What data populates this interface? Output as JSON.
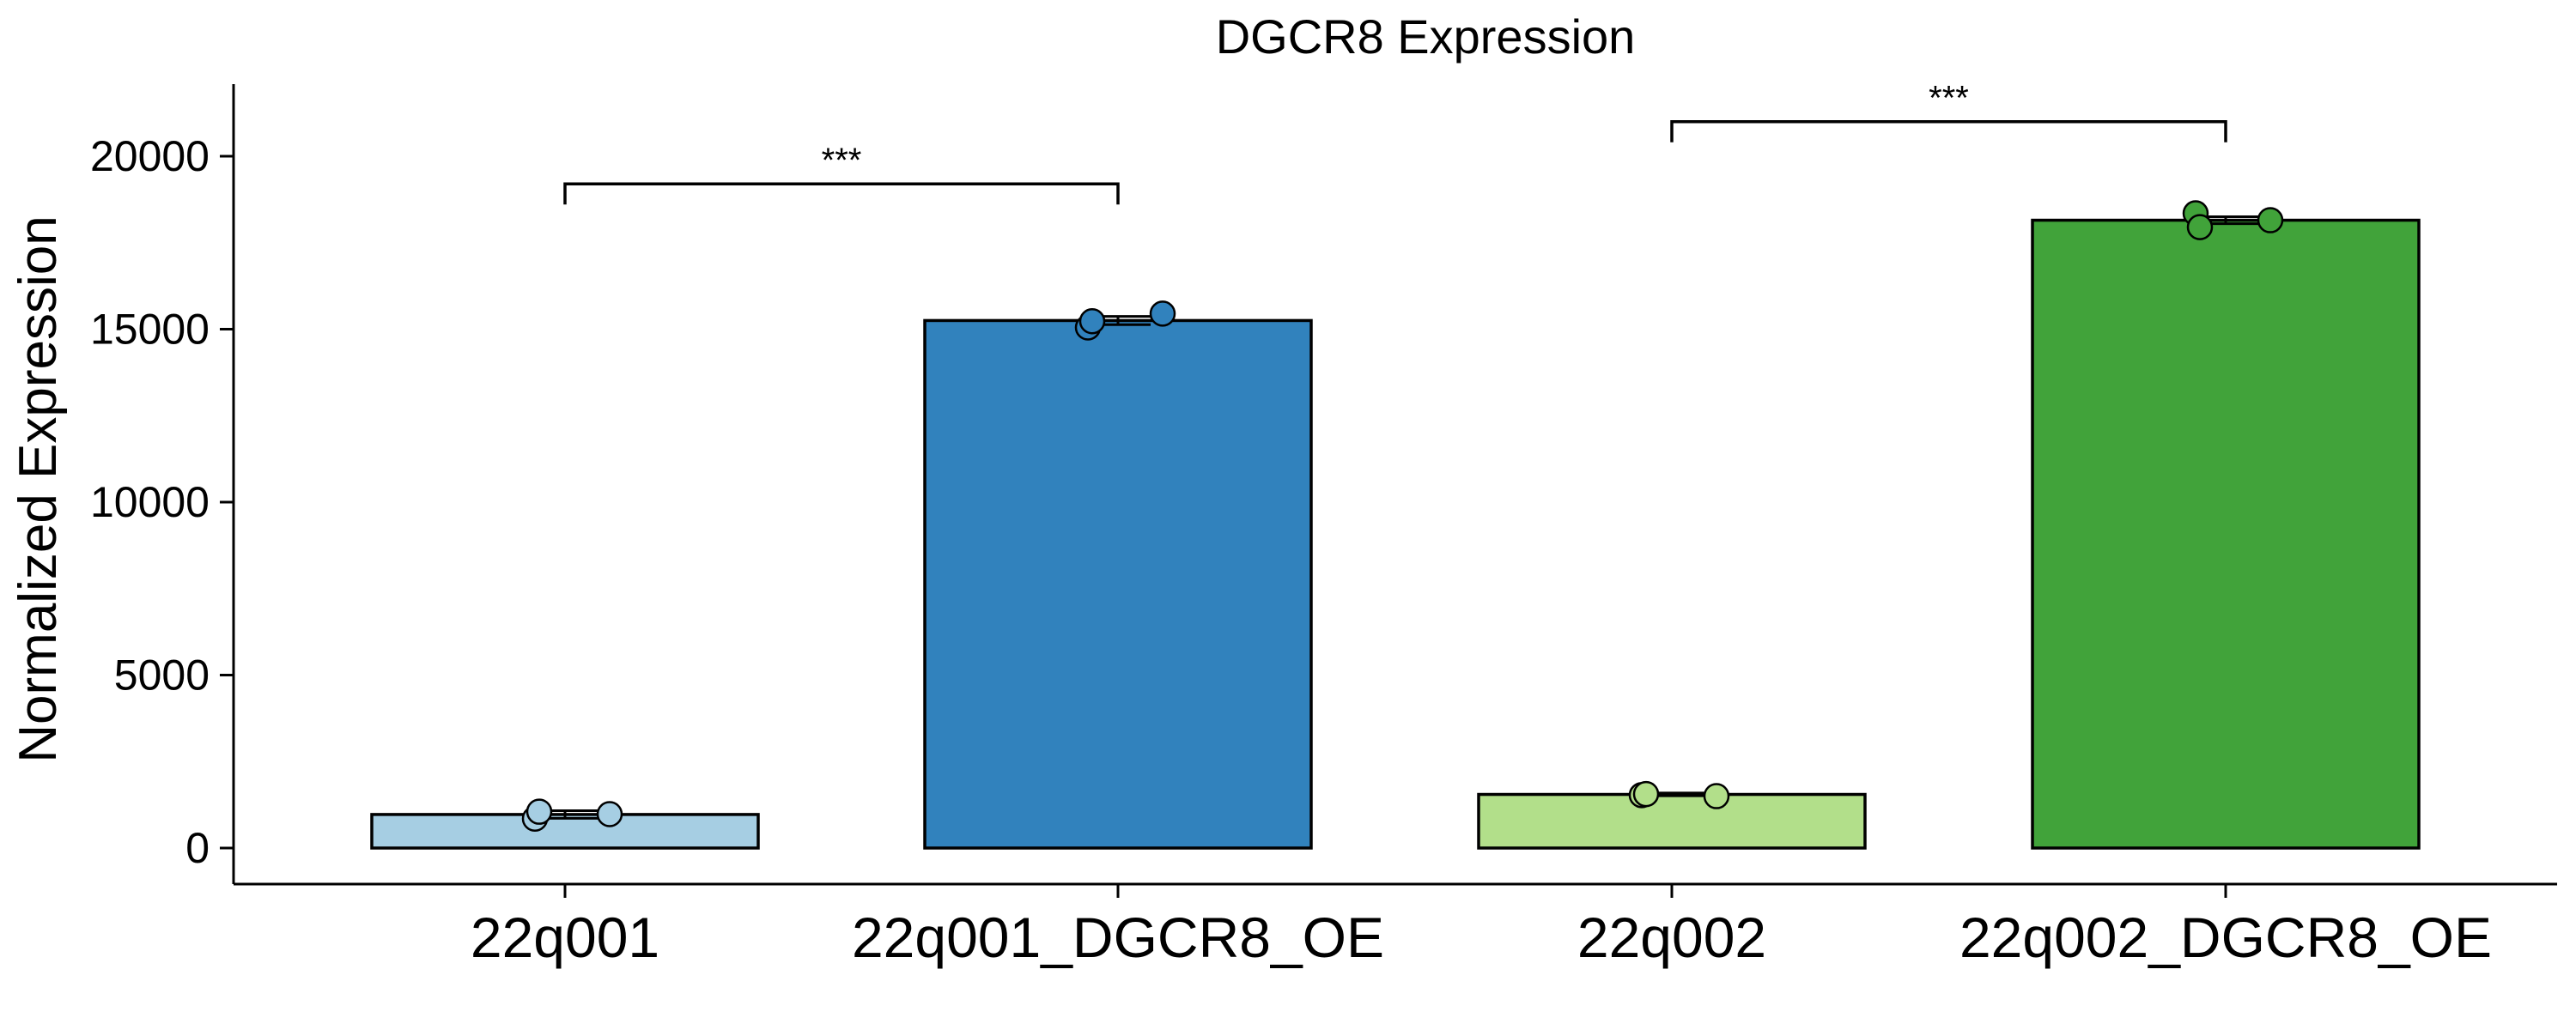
{
  "chart_data": {
    "type": "bar",
    "title": "DGCR8 Expression",
    "xlabel": "",
    "ylabel": "Normalized Expression",
    "categories": [
      "22q001",
      "22q001_DGCR8_OE",
      "22q002",
      "22q002_DGCR8_OE"
    ],
    "values": [
      970,
      15250,
      1550,
      18150
    ],
    "errors": [
      110,
      120,
      40,
      100
    ],
    "colors": [
      "#A6CEE3",
      "#3182BD",
      "#B2DF8A",
      "#41A33A"
    ],
    "points": [
      [
        850,
        1050,
        980
      ],
      [
        15050,
        15230,
        15450
      ],
      [
        1530,
        1560,
        1500
      ],
      [
        18350,
        17950,
        18150
      ]
    ],
    "ylim": [
      -1000,
      22000
    ],
    "yticks": [
      0,
      5000,
      10000,
      15000,
      20000
    ],
    "ytick_labels": [
      "0",
      "5000",
      "10000",
      "15000",
      "20000"
    ],
    "significance": [
      {
        "from": 0,
        "to": 1,
        "y": 19200,
        "label": "***"
      },
      {
        "from": 2,
        "to": 3,
        "y": 21000,
        "label": "***"
      }
    ],
    "grid": false,
    "legend": "none"
  }
}
